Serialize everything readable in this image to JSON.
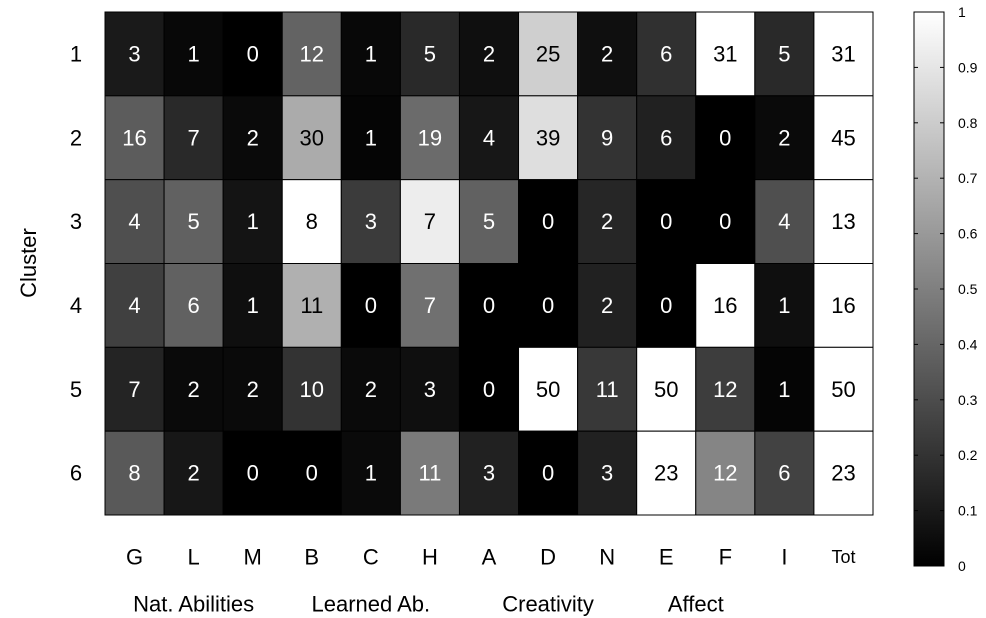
{
  "chart_data": {
    "type": "heatmap",
    "ylabel": "Cluster",
    "rows": [
      "1",
      "2",
      "3",
      "4",
      "5",
      "6"
    ],
    "columns": [
      "G",
      "L",
      "M",
      "B",
      "C",
      "H",
      "A",
      "D",
      "N",
      "E",
      "F",
      "I",
      "Tot"
    ],
    "column_groups": [
      {
        "label": "Nat. Abilities",
        "columns": [
          "G",
          "L",
          "M"
        ]
      },
      {
        "label": "Learned Ab.",
        "columns": [
          "B",
          "C",
          "H"
        ]
      },
      {
        "label": "Creativity",
        "columns": [
          "A",
          "D",
          "N"
        ]
      },
      {
        "label": "Affect",
        "columns": [
          "E",
          "F"
        ]
      }
    ],
    "values": [
      [
        3,
        1,
        0,
        12,
        1,
        5,
        2,
        25,
        2,
        6,
        31,
        5,
        31
      ],
      [
        16,
        7,
        2,
        30,
        1,
        19,
        4,
        39,
        9,
        6,
        0,
        2,
        45
      ],
      [
        4,
        5,
        1,
        8,
        3,
        7,
        5,
        0,
        2,
        0,
        0,
        4,
        13
      ],
      [
        4,
        6,
        1,
        11,
        0,
        7,
        0,
        0,
        2,
        0,
        16,
        1,
        16
      ],
      [
        7,
        2,
        2,
        10,
        2,
        3,
        0,
        50,
        11,
        50,
        12,
        1,
        50
      ],
      [
        8,
        2,
        0,
        0,
        1,
        11,
        3,
        0,
        3,
        23,
        12,
        6,
        23
      ]
    ],
    "intensity": [
      [
        0.1,
        0.03,
        0.0,
        0.39,
        0.03,
        0.16,
        0.06,
        0.81,
        0.06,
        0.19,
        1.0,
        0.16,
        1.0
      ],
      [
        0.36,
        0.16,
        0.04,
        0.67,
        0.02,
        0.42,
        0.09,
        0.87,
        0.2,
        0.13,
        0.0,
        0.04,
        1.0
      ],
      [
        0.31,
        0.38,
        0.08,
        1.0,
        0.23,
        0.93,
        0.38,
        0.0,
        0.15,
        0.0,
        0.0,
        0.31,
        1.0
      ],
      [
        0.25,
        0.38,
        0.06,
        0.69,
        0.0,
        0.44,
        0.0,
        0.0,
        0.13,
        0.0,
        1.0,
        0.06,
        1.0
      ],
      [
        0.14,
        0.04,
        0.04,
        0.2,
        0.04,
        0.06,
        0.0,
        1.0,
        0.22,
        1.0,
        0.24,
        0.02,
        1.0
      ],
      [
        0.35,
        0.09,
        0.0,
        0.0,
        0.04,
        0.48,
        0.13,
        0.0,
        0.13,
        1.0,
        0.52,
        0.26,
        1.0
      ]
    ],
    "colorbar": {
      "min": 0,
      "max": 1,
      "ticks": [
        "0",
        "0.1",
        "0.2",
        "0.3",
        "0.4",
        "0.5",
        "0.6",
        "0.7",
        "0.8",
        "0.9",
        "1"
      ],
      "colormap": "gray"
    },
    "grid": true
  }
}
